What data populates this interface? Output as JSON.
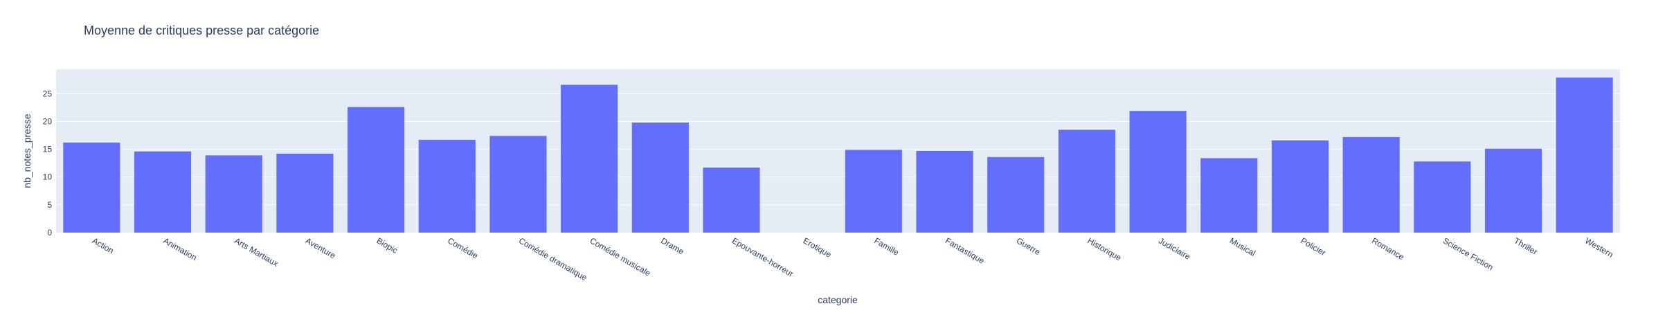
{
  "chart_data": {
    "type": "bar",
    "title": "Moyenne de critiques presse par catégorie",
    "xlabel": "categorie",
    "ylabel": "nb_notes_presse",
    "categories": [
      "Action",
      "Animation",
      "Arts Martiaux",
      "Aventure",
      "Biopic",
      "Comédie",
      "Comédie dramatique",
      "Comédie musicale",
      "Drame",
      "Epouvante-horreur",
      "Erotique",
      "Famille",
      "Fantastique",
      "Guerre",
      "Historique",
      "Judiciaire",
      "Musical",
      "Policier",
      "Romance",
      "Science Fiction",
      "Thriller",
      "Western"
    ],
    "values": [
      16.2,
      14.6,
      13.9,
      14.2,
      22.6,
      16.7,
      17.4,
      26.6,
      19.8,
      11.7,
      0,
      14.9,
      14.7,
      13.6,
      18.5,
      21.9,
      13.4,
      16.6,
      17.2,
      12.8,
      15.1,
      27.9
    ],
    "ylim": [
      0,
      29.4
    ],
    "yticks": [
      0,
      5,
      10,
      15,
      20,
      25
    ],
    "grid": true,
    "colors": {
      "bar": "#636efa",
      "plot_bg": "#e5ecf6",
      "grid": "#ffffff",
      "text": "#2a3f5f"
    }
  }
}
